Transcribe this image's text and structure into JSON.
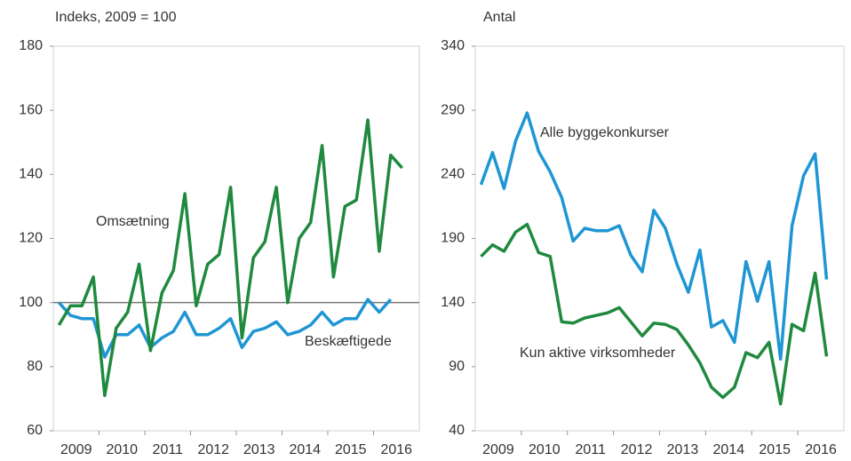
{
  "chart_data": [
    {
      "type": "line",
      "axis_label": "Indeks, 2009 = 100",
      "categories": [
        "2009",
        null,
        null,
        null,
        "2010",
        null,
        null,
        null,
        "2011",
        null,
        null,
        null,
        "2012",
        null,
        null,
        null,
        "2013",
        null,
        null,
        null,
        "2014",
        null,
        null,
        null,
        "2015",
        null,
        null,
        null,
        "2016",
        null,
        null
      ],
      "series": [
        {
          "name": "Beskæftigede",
          "color": "#1f96d4",
          "values": [
            100,
            96,
            95,
            95,
            83,
            90,
            90,
            93,
            86,
            89,
            91,
            97,
            90,
            90,
            92,
            95,
            86,
            91,
            92,
            94,
            90,
            91,
            93,
            97,
            93,
            95,
            95,
            101,
            97,
            101,
            null
          ]
        },
        {
          "name": "Omsætning",
          "color": "#1f8a3e",
          "values": [
            93,
            99,
            99,
            108,
            71,
            92,
            97,
            112,
            85,
            103,
            110,
            134,
            99,
            112,
            115,
            136,
            89,
            114,
            119,
            136,
            100,
            120,
            125,
            149,
            108,
            130,
            132,
            157,
            116,
            146,
            142
          ]
        }
      ],
      "ylim": [
        60,
        180
      ],
      "yticks": [
        60,
        80,
        100,
        120,
        140,
        160,
        180
      ],
      "reference_line": 100
    },
    {
      "type": "line",
      "axis_label": "Antal",
      "categories": [
        "2009",
        null,
        null,
        null,
        "2010",
        null,
        null,
        null,
        "2011",
        null,
        null,
        null,
        "2012",
        null,
        null,
        null,
        "2013",
        null,
        null,
        null,
        "2014",
        null,
        null,
        null,
        "2015",
        null,
        null,
        null,
        "2016",
        null,
        null
      ],
      "series": [
        {
          "name": "Alle byggekonkurser",
          "color": "#1f96d4",
          "values": [
            232,
            257,
            229,
            266,
            288,
            258,
            242,
            222,
            188,
            198,
            196,
            196,
            200,
            177,
            164,
            212,
            198,
            170,
            148,
            181,
            121,
            126,
            109,
            172,
            141,
            172,
            96,
            200,
            239,
            256,
            158
          ]
        },
        {
          "name": "Kun aktive virksomheder",
          "color": "#1f8a3e",
          "values": [
            176,
            185,
            180,
            195,
            201,
            179,
            176,
            125,
            124,
            128,
            130,
            132,
            136,
            125,
            114,
            124,
            123,
            119,
            107,
            93,
            74,
            66,
            74,
            101,
            97,
            109,
            61,
            123,
            118,
            163,
            98
          ]
        }
      ],
      "ylim": [
        40,
        340
      ],
      "yticks": [
        40,
        90,
        140,
        190,
        240,
        290,
        340
      ]
    }
  ]
}
